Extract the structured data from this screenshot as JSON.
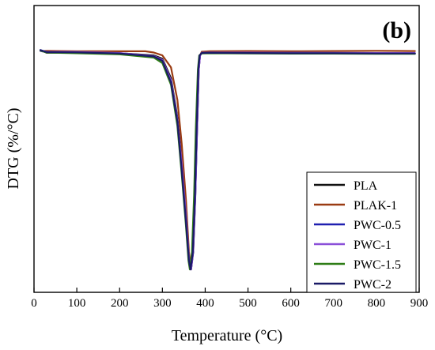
{
  "chart_data": {
    "type": "line",
    "panel_label": "(b)",
    "xlabel": "Temperature (°C)",
    "ylabel": "DTG (%/°C)",
    "xlim": [
      0,
      900
    ],
    "ylim": [
      -100,
      5
    ],
    "x_ticks": [
      0,
      100,
      200,
      300,
      400,
      500,
      600,
      700,
      800,
      900
    ],
    "y_ticks_labeled": false,
    "grid": false,
    "legend_position": "bottom-right",
    "series": [
      {
        "name": "PLA",
        "color": "#111111",
        "points": [
          [
            15,
            0.8
          ],
          [
            20,
            0.5
          ],
          [
            30,
            -0.3
          ],
          [
            100,
            -0.2
          ],
          [
            200,
            -0.5
          ],
          [
            280,
            -1.5
          ],
          [
            300,
            -3
          ],
          [
            320,
            -12
          ],
          [
            335,
            -30
          ],
          [
            345,
            -50
          ],
          [
            355,
            -75
          ],
          [
            362,
            -95
          ],
          [
            366,
            -100
          ],
          [
            371,
            -90
          ],
          [
            376,
            -65
          ],
          [
            380,
            -35
          ],
          [
            384,
            -8
          ],
          [
            387,
            -1.5
          ],
          [
            392,
            -0.4
          ],
          [
            410,
            -0.3
          ],
          [
            500,
            -0.4
          ],
          [
            600,
            -0.5
          ],
          [
            700,
            -0.6
          ],
          [
            800,
            -0.6
          ],
          [
            890,
            -0.7
          ]
        ]
      },
      {
        "name": "PLAK-1",
        "color": "#9a3b12",
        "points": [
          [
            15,
            0.6
          ],
          [
            20,
            0.4
          ],
          [
            30,
            0.6
          ],
          [
            100,
            0.4
          ],
          [
            200,
            0.4
          ],
          [
            260,
            0.4
          ],
          [
            280,
            -0.2
          ],
          [
            300,
            -1.5
          ],
          [
            320,
            -7
          ],
          [
            335,
            -22
          ],
          [
            345,
            -42
          ],
          [
            355,
            -68
          ],
          [
            362,
            -92
          ],
          [
            367,
            -100
          ],
          [
            372,
            -92
          ],
          [
            377,
            -65
          ],
          [
            381,
            -35
          ],
          [
            385,
            -8
          ],
          [
            388,
            -1.5
          ],
          [
            392,
            0.2
          ],
          [
            410,
            0.4
          ],
          [
            500,
            0.5
          ],
          [
            600,
            0.4
          ],
          [
            700,
            0.5
          ],
          [
            800,
            0.6
          ],
          [
            890,
            0.5
          ]
        ]
      },
      {
        "name": "PWC-0.5",
        "color": "#1f1fb0",
        "points": [
          [
            15,
            1.0
          ],
          [
            20,
            0.6
          ],
          [
            30,
            0.1
          ],
          [
            100,
            0
          ],
          [
            200,
            -0.6
          ],
          [
            280,
            -2
          ],
          [
            300,
            -4
          ],
          [
            320,
            -13
          ],
          [
            335,
            -31
          ],
          [
            345,
            -52
          ],
          [
            355,
            -76
          ],
          [
            362,
            -95
          ],
          [
            367,
            -100
          ],
          [
            372,
            -92
          ],
          [
            377,
            -66
          ],
          [
            381,
            -36
          ],
          [
            385,
            -8
          ],
          [
            388,
            -1.5
          ],
          [
            392,
            -0.3
          ],
          [
            410,
            -0.2
          ],
          [
            500,
            -0.3
          ],
          [
            600,
            -0.3
          ],
          [
            700,
            -0.4
          ],
          [
            800,
            -0.4
          ],
          [
            890,
            -0.5
          ]
        ]
      },
      {
        "name": "PWC-1",
        "color": "#8a4fd8",
        "points": [
          [
            15,
            0.5
          ],
          [
            20,
            0.3
          ],
          [
            30,
            0.2
          ],
          [
            100,
            0.1
          ],
          [
            200,
            -0.4
          ],
          [
            280,
            -1.8
          ],
          [
            300,
            -3.5
          ],
          [
            320,
            -13
          ],
          [
            335,
            -31
          ],
          [
            345,
            -51
          ],
          [
            355,
            -75
          ],
          [
            362,
            -95
          ],
          [
            367,
            -100
          ],
          [
            372,
            -91
          ],
          [
            377,
            -65
          ],
          [
            381,
            -35
          ],
          [
            385,
            -8
          ],
          [
            388,
            -1.5
          ],
          [
            392,
            -0.3
          ],
          [
            410,
            -0.2
          ],
          [
            500,
            -0.2
          ],
          [
            600,
            -0.3
          ],
          [
            700,
            -0.3
          ],
          [
            800,
            -0.4
          ],
          [
            890,
            -0.4
          ]
        ]
      },
      {
        "name": "PWC-1.5",
        "color": "#2e7d16",
        "points": [
          [
            15,
            0.7
          ],
          [
            20,
            0.4
          ],
          [
            30,
            -0.2
          ],
          [
            100,
            -0.5
          ],
          [
            200,
            -1.0
          ],
          [
            280,
            -2.5
          ],
          [
            300,
            -5
          ],
          [
            320,
            -15
          ],
          [
            335,
            -34
          ],
          [
            345,
            -56
          ],
          [
            355,
            -80
          ],
          [
            361,
            -96
          ],
          [
            364,
            -100
          ],
          [
            369,
            -92
          ],
          [
            374,
            -66
          ],
          [
            378,
            -36
          ],
          [
            383,
            -8
          ],
          [
            386,
            -1.5
          ],
          [
            392,
            -0.6
          ],
          [
            410,
            -0.5
          ],
          [
            500,
            -0.6
          ],
          [
            600,
            -0.7
          ],
          [
            700,
            -0.7
          ],
          [
            800,
            -0.8
          ],
          [
            890,
            -0.8
          ]
        ]
      },
      {
        "name": "PWC-2",
        "color": "#1a1a66",
        "points": [
          [
            15,
            0.9
          ],
          [
            20,
            0.6
          ],
          [
            30,
            0
          ],
          [
            100,
            -0.1
          ],
          [
            200,
            -0.6
          ],
          [
            280,
            -2
          ],
          [
            300,
            -4
          ],
          [
            320,
            -14
          ],
          [
            335,
            -32
          ],
          [
            345,
            -54
          ],
          [
            355,
            -78
          ],
          [
            362,
            -96
          ],
          [
            366,
            -100
          ],
          [
            371,
            -92
          ],
          [
            376,
            -66
          ],
          [
            380,
            -36
          ],
          [
            384,
            -8
          ],
          [
            387,
            -1.5
          ],
          [
            392,
            -0.4
          ],
          [
            410,
            -0.3
          ],
          [
            500,
            -0.4
          ],
          [
            600,
            -0.5
          ],
          [
            700,
            -0.5
          ],
          [
            800,
            -0.6
          ],
          [
            890,
            -0.6
          ]
        ]
      }
    ]
  }
}
